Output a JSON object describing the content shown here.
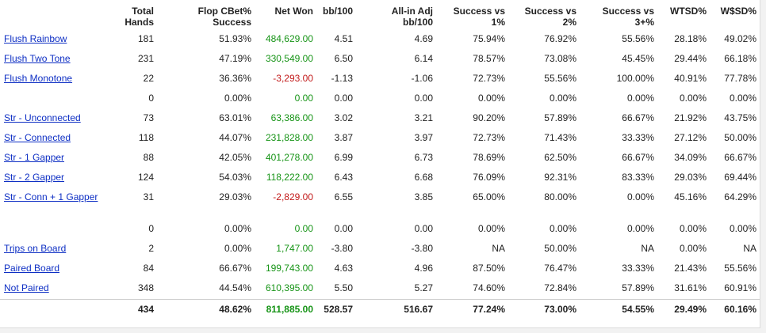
{
  "colors": {
    "link": "#0e2fc4",
    "positive": "#179417",
    "negative": "#c21a1a"
  },
  "headers": [
    [
      "",
      ""
    ],
    [
      "Total",
      "Hands"
    ],
    [
      "Flop CBet%",
      "Success"
    ],
    [
      "Net Won",
      ""
    ],
    [
      "bb/100",
      ""
    ],
    [
      "All-in Adj",
      "bb/100"
    ],
    [
      "Success vs",
      "1%"
    ],
    [
      "Success vs",
      "2%"
    ],
    [
      "Success vs",
      "3+%"
    ],
    [
      "WTSD%",
      ""
    ],
    [
      "W$SD%",
      ""
    ]
  ],
  "rows": [
    [
      "Flush Rainbow",
      "181",
      "51.93%",
      "484,629.00",
      "4.51",
      "4.69",
      "75.94%",
      "76.92%",
      "55.56%",
      "28.18%",
      "49.02%"
    ],
    [
      "Flush Two Tone",
      "231",
      "47.19%",
      "330,549.00",
      "6.50",
      "6.14",
      "78.57%",
      "73.08%",
      "45.45%",
      "29.44%",
      "66.18%"
    ],
    [
      "Flush Monotone",
      "22",
      "36.36%",
      "-3,293.00",
      "-1.13",
      "-1.06",
      "72.73%",
      "55.56%",
      "100.00%",
      "40.91%",
      "77.78%"
    ],
    [
      "",
      "0",
      "0.00%",
      "0.00",
      "0.00",
      "0.00",
      "0.00%",
      "0.00%",
      "0.00%",
      "0.00%",
      "0.00%"
    ],
    [
      "Str - Unconnected",
      "73",
      "63.01%",
      "63,386.00",
      "3.02",
      "3.21",
      "90.20%",
      "57.89%",
      "66.67%",
      "21.92%",
      "43.75%"
    ],
    [
      "Str - Connected",
      "118",
      "44.07%",
      "231,828.00",
      "3.87",
      "3.97",
      "72.73%",
      "71.43%",
      "33.33%",
      "27.12%",
      "50.00%"
    ],
    [
      "Str - 1 Gapper",
      "88",
      "42.05%",
      "401,278.00",
      "6.99",
      "6.73",
      "78.69%",
      "62.50%",
      "66.67%",
      "34.09%",
      "66.67%"
    ],
    [
      "Str - 2 Gapper",
      "124",
      "54.03%",
      "118,222.00",
      "6.43",
      "6.68",
      "76.09%",
      "92.31%",
      "83.33%",
      "29.03%",
      "69.44%"
    ],
    [
      "Str - Conn + 1 Gapper",
      "31",
      "29.03%",
      "-2,829.00",
      "6.55",
      "3.85",
      "65.00%",
      "80.00%",
      "0.00%",
      "45.16%",
      "64.29%"
    ],
    [
      "",
      "0",
      "0.00%",
      "0.00",
      "0.00",
      "0.00",
      "0.00%",
      "0.00%",
      "0.00%",
      "0.00%",
      "0.00%"
    ],
    [
      "Trips on Board",
      "2",
      "0.00%",
      "1,747.00",
      "-3.80",
      "-3.80",
      "NA",
      "50.00%",
      "NA",
      "0.00%",
      "NA"
    ],
    [
      "Paired Board",
      "84",
      "66.67%",
      "199,743.00",
      "4.63",
      "4.96",
      "87.50%",
      "76.47%",
      "33.33%",
      "21.43%",
      "55.56%"
    ],
    [
      "Not Paired",
      "348",
      "44.54%",
      "610,395.00",
      "5.50",
      "5.27",
      "74.60%",
      "72.84%",
      "57.89%",
      "31.61%",
      "60.91%"
    ]
  ],
  "totals": [
    "",
    "434",
    "48.62%",
    "811,885.00",
    "528.57",
    "516.67",
    "77.24%",
    "73.00%",
    "54.55%",
    "29.49%",
    "60.16%"
  ]
}
